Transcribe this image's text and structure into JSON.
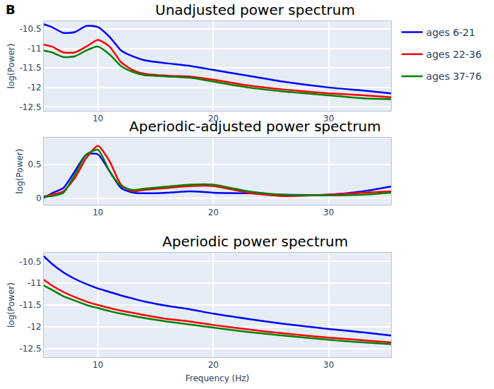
{
  "chart_data": [
    {
      "type": "line",
      "title": "Unadjusted power spectrum",
      "y_label": "log(Power)",
      "annotations": [
        "B"
      ],
      "legend": "right",
      "grid": true,
      "x": [
        5.3,
        6,
        7,
        8,
        9,
        10,
        11,
        12,
        13,
        14,
        16,
        18,
        20,
        23,
        26,
        30,
        33,
        35.4
      ],
      "xlim": [
        5.3,
        35.4
      ],
      "xticks": [
        10,
        20,
        30
      ],
      "ylim": [
        -12.6,
        -10.3
      ],
      "yticks": [
        -12.5,
        -12,
        -11.5,
        -11,
        -10.5
      ],
      "series": [
        {
          "name": "ages 6-21",
          "color": "#0000ff",
          "values": [
            -10.38,
            -10.45,
            -10.6,
            -10.58,
            -10.42,
            -10.45,
            -10.7,
            -11.05,
            -11.2,
            -11.3,
            -11.38,
            -11.45,
            -11.55,
            -11.7,
            -11.85,
            -12.0,
            -12.08,
            -12.15
          ]
        },
        {
          "name": "ages 22-36",
          "color": "#ff0000",
          "values": [
            -10.9,
            -10.95,
            -11.1,
            -11.1,
            -10.95,
            -10.78,
            -10.95,
            -11.35,
            -11.55,
            -11.65,
            -11.7,
            -11.72,
            -11.8,
            -11.95,
            -12.05,
            -12.15,
            -12.2,
            -12.25
          ]
        },
        {
          "name": "ages 37-76",
          "color": "#008000",
          "values": [
            -11.05,
            -11.1,
            -11.22,
            -11.2,
            -11.05,
            -10.95,
            -11.15,
            -11.45,
            -11.6,
            -11.68,
            -11.72,
            -11.75,
            -11.85,
            -12.0,
            -12.1,
            -12.2,
            -12.28,
            -12.3
          ]
        }
      ]
    },
    {
      "type": "line",
      "title": "Aperiodic-adjusted power spectrum",
      "y_label": "log(Power)",
      "grid": true,
      "x": [
        5.3,
        6,
        7,
        8,
        9,
        10,
        11,
        12,
        13,
        14,
        16,
        18,
        20,
        23,
        26,
        30,
        33,
        35.4
      ],
      "xlim": [
        5.3,
        35.4
      ],
      "xticks": [
        10,
        20,
        30
      ],
      "ylim": [
        -0.1,
        0.9
      ],
      "yticks": [
        0,
        0.5
      ],
      "series": [
        {
          "name": "ages 6-21",
          "color": "#0000ff",
          "values": [
            0.0,
            0.07,
            0.15,
            0.4,
            0.65,
            0.65,
            0.4,
            0.15,
            0.08,
            0.07,
            0.08,
            0.1,
            0.08,
            0.07,
            0.05,
            0.05,
            0.1,
            0.17
          ]
        },
        {
          "name": "ages 22-36",
          "color": "#ff0000",
          "values": [
            0.02,
            0.05,
            0.1,
            0.3,
            0.6,
            0.78,
            0.55,
            0.2,
            0.1,
            0.12,
            0.15,
            0.18,
            0.18,
            0.08,
            0.03,
            0.05,
            0.08,
            0.1
          ]
        },
        {
          "name": "ages 37-76",
          "color": "#008000",
          "values": [
            0.02,
            0.03,
            0.08,
            0.35,
            0.65,
            0.72,
            0.4,
            0.18,
            0.12,
            0.14,
            0.17,
            0.2,
            0.2,
            0.1,
            0.05,
            0.04,
            0.05,
            0.08
          ]
        }
      ]
    },
    {
      "type": "line",
      "title": "Aperiodic power spectrum",
      "x_label": "Frequency (Hz)",
      "y_label": "log(Power)",
      "grid": true,
      "x": [
        5.3,
        6,
        7,
        8,
        9,
        10,
        11,
        12,
        13,
        14,
        16,
        18,
        20,
        23,
        26,
        30,
        33,
        35.4
      ],
      "xlim": [
        5.3,
        35.4
      ],
      "xticks": [
        10,
        20,
        30
      ],
      "ylim": [
        -12.7,
        -10.3
      ],
      "yticks": [
        -12.5,
        -12,
        -11.5,
        -11,
        -10.5
      ],
      "series": [
        {
          "name": "ages 6-21",
          "color": "#0000ff",
          "values": [
            -10.38,
            -10.55,
            -10.75,
            -10.9,
            -11.02,
            -11.12,
            -11.2,
            -11.28,
            -11.35,
            -11.42,
            -11.52,
            -11.6,
            -11.7,
            -11.82,
            -11.93,
            -12.05,
            -12.13,
            -12.2
          ]
        },
        {
          "name": "ages 22-36",
          "color": "#ff0000",
          "values": [
            -10.92,
            -11.05,
            -11.2,
            -11.32,
            -11.42,
            -11.5,
            -11.57,
            -11.63,
            -11.68,
            -11.73,
            -11.82,
            -11.88,
            -11.96,
            -12.06,
            -12.15,
            -12.25,
            -12.31,
            -12.36
          ]
        },
        {
          "name": "ages 37-76",
          "color": "#008000",
          "values": [
            -11.05,
            -11.15,
            -11.3,
            -11.4,
            -11.5,
            -11.57,
            -11.64,
            -11.7,
            -11.75,
            -11.8,
            -11.88,
            -11.95,
            -12.02,
            -12.12,
            -12.2,
            -12.3,
            -12.36,
            -12.4
          ]
        }
      ]
    }
  ]
}
